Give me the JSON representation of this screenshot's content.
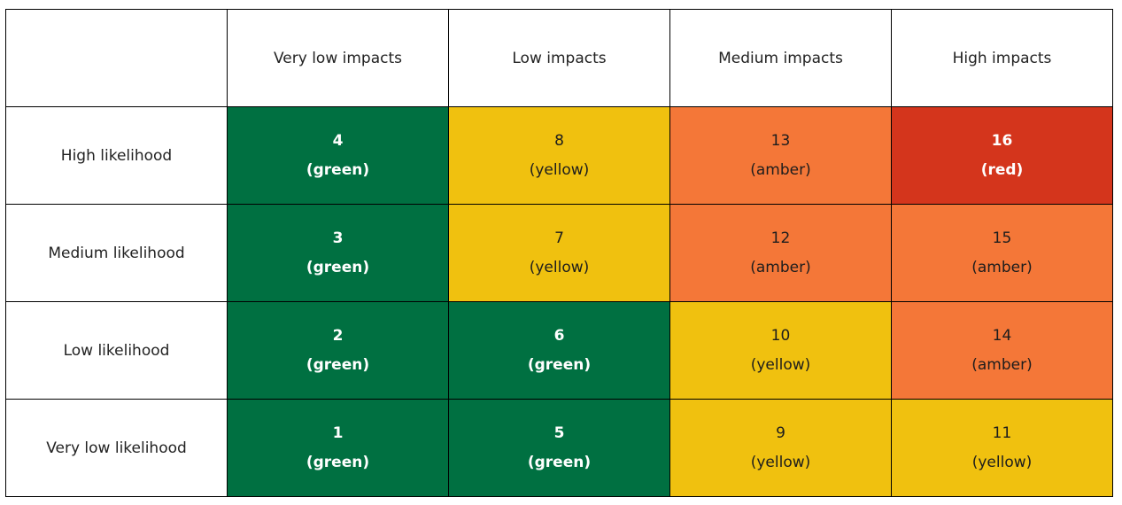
{
  "matrix": {
    "corner": "",
    "columns": [
      "Very low impacts",
      "Low impacts",
      "Medium impacts",
      "High impacts"
    ],
    "rows": [
      {
        "label": "High likelihood",
        "cells": [
          {
            "score": "4",
            "rating": "(green)",
            "color": "green"
          },
          {
            "score": "8",
            "rating": "(yellow)",
            "color": "yellow"
          },
          {
            "score": "13",
            "rating": "(amber)",
            "color": "amber"
          },
          {
            "score": "16",
            "rating": "(red)",
            "color": "red"
          }
        ]
      },
      {
        "label": "Medium likelihood",
        "cells": [
          {
            "score": "3",
            "rating": "(green)",
            "color": "green"
          },
          {
            "score": "7",
            "rating": "(yellow)",
            "color": "yellow"
          },
          {
            "score": "12",
            "rating": "(amber)",
            "color": "amber"
          },
          {
            "score": "15",
            "rating": "(amber)",
            "color": "amber"
          }
        ]
      },
      {
        "label": "Low likelihood",
        "cells": [
          {
            "score": "2",
            "rating": "(green)",
            "color": "green"
          },
          {
            "score": "6",
            "rating": "(green)",
            "color": "green"
          },
          {
            "score": "10",
            "rating": "(yellow)",
            "color": "yellow"
          },
          {
            "score": "14",
            "rating": "(amber)",
            "color": "amber"
          }
        ]
      },
      {
        "label": "Very low likelihood",
        "cells": [
          {
            "score": "1",
            "rating": "(green)",
            "color": "green"
          },
          {
            "score": "5",
            "rating": "(green)",
            "color": "green"
          },
          {
            "score": "9",
            "rating": "(yellow)",
            "color": "yellow"
          },
          {
            "score": "11",
            "rating": "(yellow)",
            "color": "yellow"
          }
        ]
      }
    ],
    "colors": {
      "green": "#007041",
      "yellow": "#f0c10f",
      "amber": "#f47738",
      "red": "#d4351c"
    }
  }
}
